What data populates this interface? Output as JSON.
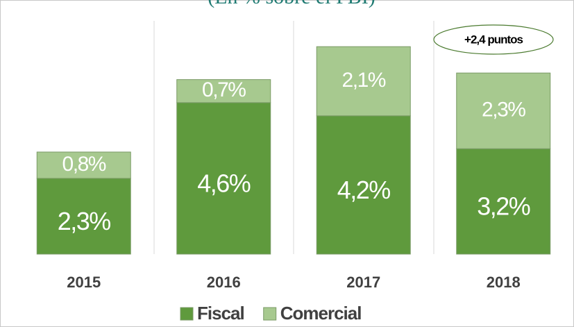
{
  "chart_data": {
    "type": "stacked_bar",
    "subtitle": "(En % sobre el PBI)",
    "categories": [
      "2015",
      "2016",
      "2017",
      "2018"
    ],
    "series": [
      {
        "name": "Fiscal",
        "color": "#5f9a3d",
        "values": [
          2.3,
          4.6,
          4.2,
          3.2
        ],
        "value_labels": [
          "2,3%",
          "4,6%",
          "4,2%",
          "3,2%"
        ]
      },
      {
        "name": "Comercial",
        "color": "#a7c98f",
        "values": [
          0.8,
          0.7,
          2.1,
          2.3
        ],
        "value_labels": [
          "0,8%",
          "0,7%",
          "2,1%",
          "2,3%"
        ]
      }
    ],
    "annotation": "+2,4 puntos",
    "ylim": [
      0,
      7
    ],
    "legend": "bottom"
  }
}
